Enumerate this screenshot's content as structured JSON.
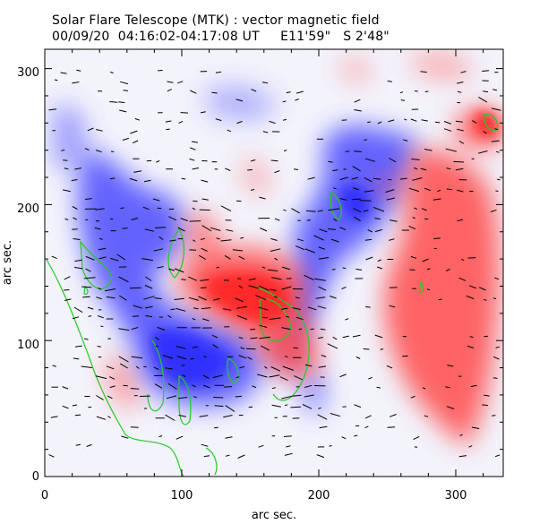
{
  "title_line1": "Solar Flare Telescope (MTK) : vector magnetic field",
  "title_line2": "00/09/20  04:16:02-04:17:08 UT     E11'59\"   S 2'48\"",
  "x_axis": {
    "label": "arc sec.",
    "ticks": [
      "0",
      "100",
      "200",
      "300"
    ],
    "range": [
      0,
      335
    ]
  },
  "y_axis": {
    "label": "arc sec.",
    "ticks": [
      "0",
      "100",
      "200",
      "300"
    ],
    "range": [
      0,
      312
    ]
  },
  "colors": {
    "positive": "#ff4040",
    "negative": "#3a3aff",
    "contour": "#22cc22",
    "vector": "#000000",
    "frame": "#000000"
  }
}
